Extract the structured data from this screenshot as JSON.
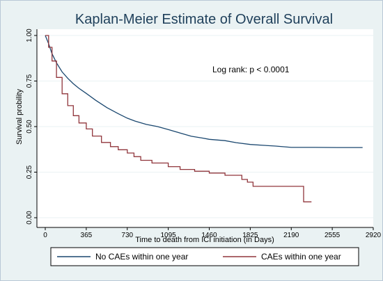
{
  "chart_data": {
    "type": "line",
    "title": "Kaplan-Meier Estimate of Overall Survival",
    "xlabel": "Time to death from ICI initiation (in Days)",
    "ylabel": "Survival probility",
    "annotation": "Log rank: p < 0.0001",
    "xlim": [
      0,
      2920
    ],
    "ylim": [
      0,
      1
    ],
    "x_ticks": [
      0,
      365,
      730,
      1095,
      1460,
      1825,
      2190,
      2555,
      2920
    ],
    "y_ticks": [
      "0.00",
      "0.25",
      "0.50",
      "0.75",
      "1.00"
    ],
    "grid": true,
    "legend_position": "bottom",
    "series": [
      {
        "name": "No CAEs within one year",
        "color": "#1a476f",
        "step": false,
        "points": [
          [
            0,
            1.0
          ],
          [
            30,
            0.955
          ],
          [
            60,
            0.9
          ],
          [
            100,
            0.85
          ],
          [
            150,
            0.8
          ],
          [
            200,
            0.765
          ],
          [
            250,
            0.735
          ],
          [
            300,
            0.71
          ],
          [
            365,
            0.682
          ],
          [
            450,
            0.644
          ],
          [
            550,
            0.604
          ],
          [
            650,
            0.571
          ],
          [
            730,
            0.546
          ],
          [
            800,
            0.53
          ],
          [
            900,
            0.512
          ],
          [
            1000,
            0.5
          ],
          [
            1095,
            0.484
          ],
          [
            1200,
            0.465
          ],
          [
            1300,
            0.447
          ],
          [
            1400,
            0.437
          ],
          [
            1460,
            0.43
          ],
          [
            1600,
            0.423
          ],
          [
            1700,
            0.412
          ],
          [
            1825,
            0.402
          ],
          [
            1950,
            0.397
          ],
          [
            2050,
            0.393
          ],
          [
            2190,
            0.386
          ],
          [
            2400,
            0.386
          ],
          [
            2600,
            0.385
          ],
          [
            2825,
            0.385
          ]
        ]
      },
      {
        "name": "CAEs within one year",
        "color": "#90353b",
        "step": true,
        "points": [
          [
            0,
            1.0
          ],
          [
            30,
            0.935
          ],
          [
            60,
            0.86
          ],
          [
            100,
            0.77
          ],
          [
            150,
            0.68
          ],
          [
            200,
            0.615
          ],
          [
            250,
            0.56
          ],
          [
            300,
            0.52
          ],
          [
            365,
            0.487
          ],
          [
            420,
            0.448
          ],
          [
            500,
            0.413
          ],
          [
            580,
            0.39
          ],
          [
            650,
            0.373
          ],
          [
            730,
            0.355
          ],
          [
            790,
            0.335
          ],
          [
            850,
            0.315
          ],
          [
            950,
            0.3
          ],
          [
            1095,
            0.28
          ],
          [
            1200,
            0.265
          ],
          [
            1330,
            0.255
          ],
          [
            1460,
            0.245
          ],
          [
            1600,
            0.233
          ],
          [
            1750,
            0.21
          ],
          [
            1800,
            0.195
          ],
          [
            1850,
            0.172
          ],
          [
            2000,
            0.172
          ],
          [
            2100,
            0.172
          ],
          [
            2295,
            0.172
          ],
          [
            2300,
            0.087
          ],
          [
            2370,
            0.087
          ]
        ]
      }
    ]
  }
}
